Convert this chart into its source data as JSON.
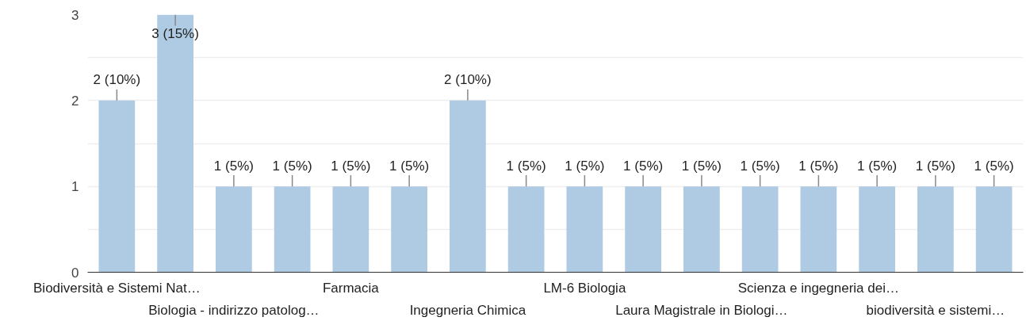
{
  "chart_data": {
    "type": "bar",
    "categories": [
      "Biodiversità e Sistemi Nat…",
      null,
      "Biologia - indirizzo patolog…",
      null,
      "Farmacia",
      null,
      "Ingegneria Chimica",
      null,
      "LM-6 Biologia",
      null,
      "Laura Magistrale in Biologi…",
      null,
      "Scienza e ingegneria dei…",
      null,
      "biodiversità e sistemi…",
      null
    ],
    "values": [
      2,
      3,
      1,
      1,
      1,
      1,
      2,
      1,
      1,
      1,
      1,
      1,
      1,
      1,
      1,
      1
    ],
    "value_labels": [
      "2 (10%)",
      "3 (15%)",
      "1 (5%)",
      "1 (5%)",
      "1 (5%)",
      "1 (5%)",
      "2 (10%)",
      "1 (5%)",
      "1 (5%)",
      "1 (5%)",
      "1 (5%)",
      "1 (5%)",
      "1 (5%)",
      "1 (5%)",
      "1 (5%)",
      "1 (5%)"
    ],
    "color": "#aecbe3",
    "ylim": [
      0,
      3
    ],
    "yticks": [
      0,
      {
        "value": 0.5,
        "label": null
      },
      1,
      {
        "value": 1.5,
        "label": null
      },
      2,
      {
        "value": 2.5,
        "label": null
      },
      3
    ],
    "grid": "y"
  }
}
